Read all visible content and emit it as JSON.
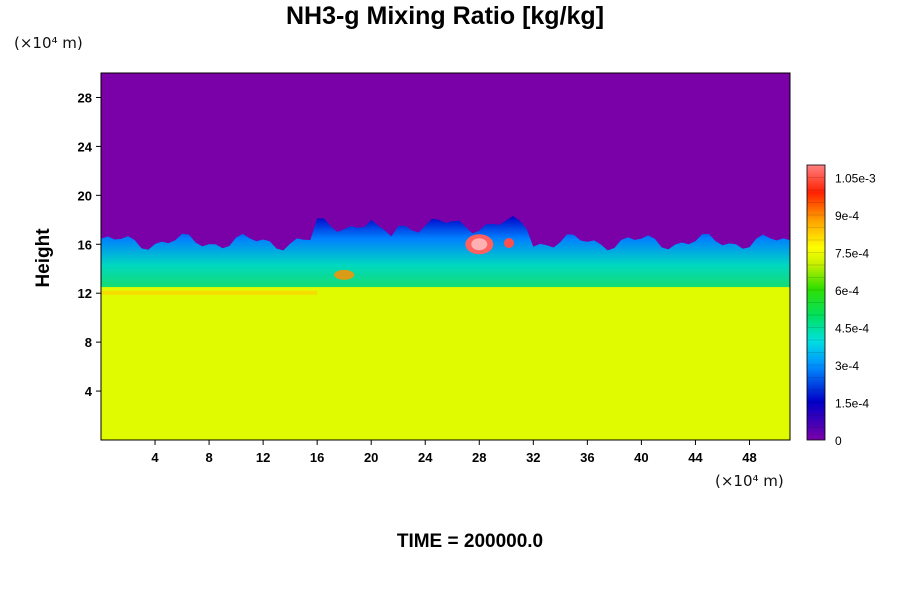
{
  "chart_data": {
    "type": "heatmap",
    "title": "NH3-g Mixing Ratio [kg/kg]",
    "ylabel": "Height",
    "y_unit": "(×10⁴ m)",
    "x_unit": "(×10⁴ m)",
    "x_ticks": [
      4,
      8,
      12,
      16,
      20,
      24,
      28,
      32,
      36,
      40,
      44,
      48
    ],
    "y_ticks": [
      4,
      8,
      12,
      16,
      20,
      24,
      28
    ],
    "xlim": [
      0,
      51
    ],
    "ylim": [
      0,
      30
    ],
    "colorbar": {
      "min": 0,
      "max": 0.0011,
      "labels": [
        {
          "value": 0,
          "text": "0"
        },
        {
          "value": 0.00015,
          "text": "1.5e-4"
        },
        {
          "value": 0.0003,
          "text": "3e-4"
        },
        {
          "value": 0.00045,
          "text": "4.5e-4"
        },
        {
          "value": 0.0006,
          "text": "6e-4"
        },
        {
          "value": 0.00075,
          "text": "7.5e-4"
        },
        {
          "value": 0.0009,
          "text": "9e-4"
        },
        {
          "value": 0.00105,
          "text": "1.05e-3"
        }
      ]
    },
    "footer": "TIME = 200000.0",
    "field_summary": [
      {
        "region": "upper",
        "height_range": [
          17,
          30
        ],
        "value": 0
      },
      {
        "region": "transition",
        "height_range": [
          15.5,
          17
        ],
        "value": 0.0002
      },
      {
        "region": "mid",
        "height_range": [
          12.5,
          15.5
        ],
        "value": 0.0006
      },
      {
        "region": "lower",
        "height_range": [
          0,
          12.5
        ],
        "value": 0.00078
      },
      {
        "region": "peak",
        "x": 28,
        "y": 16,
        "value": 0.0011
      }
    ]
  }
}
